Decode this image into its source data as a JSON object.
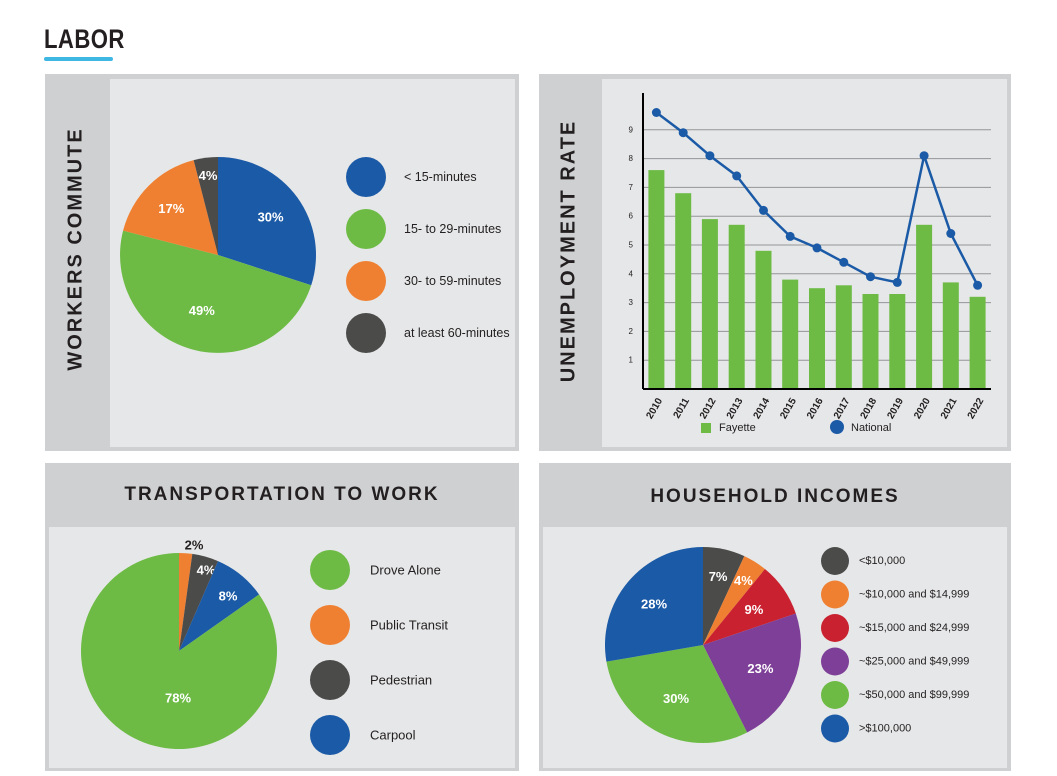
{
  "page_title": "LABOR",
  "colors": {
    "accent": "#3fb7e3",
    "blue": "#1b5aa6",
    "green": "#6dbb45",
    "orange": "#ef8031",
    "dark": "#4b4b4a",
    "red": "#c9212f",
    "purple": "#7d3f97"
  },
  "chart_data": [
    {
      "id": "workers-commute",
      "type": "pie",
      "title": "WORKERS COMMUTE",
      "slices": [
        {
          "label": "< 15-minutes",
          "value": 30,
          "display": "30%",
          "color": "#1b5aa6"
        },
        {
          "label": "15- to 29-minutes",
          "value": 49,
          "display": "49%",
          "color": "#6dbb45"
        },
        {
          "label": "30- to 59-minutes",
          "value": 17,
          "display": "17%",
          "color": "#ef8031"
        },
        {
          "label": "at least 60-minutes",
          "value": 4,
          "display": "4%",
          "color": "#4b4b4a"
        }
      ]
    },
    {
      "id": "unemployment-rate",
      "type": "bar",
      "title": "UNEMPLOYMENT RATE",
      "categories": [
        "2010",
        "2011",
        "2012",
        "2013",
        "2014",
        "2015",
        "2016",
        "2017",
        "2018",
        "2019",
        "2020",
        "2021",
        "2022"
      ],
      "series": [
        {
          "name": "Fayette",
          "type": "bar",
          "color": "#6dbb45",
          "values": [
            7.6,
            6.8,
            5.9,
            5.7,
            4.8,
            3.8,
            3.5,
            3.6,
            3.3,
            3.3,
            5.7,
            3.7,
            3.2
          ]
        },
        {
          "name": "National",
          "type": "line",
          "color": "#1b5aa6",
          "values": [
            9.6,
            8.9,
            8.1,
            7.4,
            6.2,
            5.3,
            4.9,
            4.4,
            3.9,
            3.7,
            8.1,
            5.4,
            3.6
          ]
        }
      ],
      "yticks": [
        1,
        2,
        3,
        4,
        5,
        6,
        7,
        8,
        9
      ],
      "ylim": [
        0,
        10
      ],
      "grid": true
    },
    {
      "id": "transportation-to-work",
      "type": "pie",
      "title": "TRANSPORTATION TO WORK",
      "slices": [
        {
          "label": "Public Transit",
          "value": 2,
          "display": "2%",
          "color": "#ef8031"
        },
        {
          "label": "Pedestrian",
          "value": 4,
          "display": "4%",
          "color": "#4b4b4a"
        },
        {
          "label": "Carpool",
          "value": 8,
          "display": "8%",
          "color": "#1b5aa6"
        },
        {
          "label": "Drove Alone",
          "value": 78,
          "display": "78%",
          "color": "#6dbb45"
        }
      ],
      "legend_order": [
        "Drove Alone",
        "Public Transit",
        "Pedestrian",
        "Carpool"
      ]
    },
    {
      "id": "household-incomes",
      "type": "pie",
      "title": "HOUSEHOLD INCOMES",
      "slices": [
        {
          "label": "<$10,000",
          "value": 7,
          "display": "7%",
          "color": "#4b4b4a"
        },
        {
          "label": "~$10,000 and $14,999",
          "value": 4,
          "display": "4%",
          "color": "#ef8031"
        },
        {
          "label": "~$15,000 and $24,999",
          "value": 9,
          "display": "9%",
          "color": "#c9212f"
        },
        {
          "label": "~$25,000 and $49,999",
          "value": 23,
          "display": "23%",
          "color": "#7d3f97"
        },
        {
          "label": "~$50,000 and $99,999",
          "value": 30,
          "display": "30%",
          "color": "#6dbb45"
        },
        {
          "label": ">$100,000",
          "value": 28,
          "display": "28%",
          "color": "#1b5aa6"
        }
      ]
    }
  ]
}
